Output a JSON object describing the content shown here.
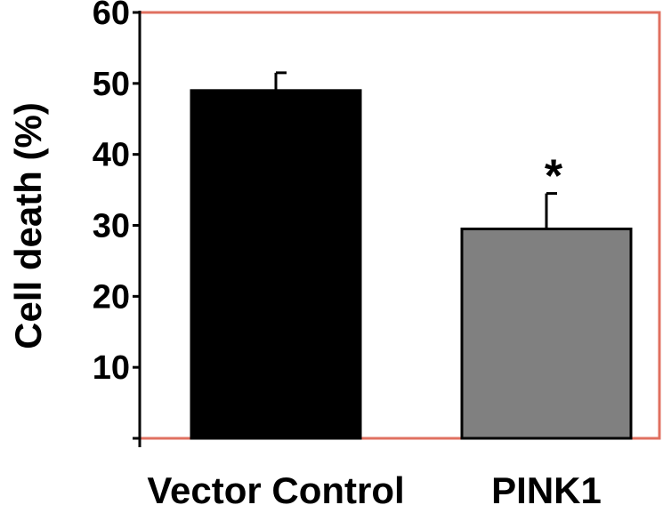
{
  "chart_data": {
    "type": "bar",
    "title": "",
    "xlabel": "",
    "ylabel": "Cell death (%)",
    "ylim": [
      0,
      60
    ],
    "yticks": [
      10,
      20,
      30,
      40,
      50,
      60
    ],
    "categories": [
      "Vector Control",
      "PINK1"
    ],
    "values": [
      49,
      29.5
    ],
    "error": [
      2.5,
      5
    ],
    "bar_colors": [
      "#000000",
      "#808080"
    ],
    "annotations": [
      "",
      "*"
    ],
    "grid": false,
    "legend": "none",
    "frame_color": "#e07060"
  }
}
